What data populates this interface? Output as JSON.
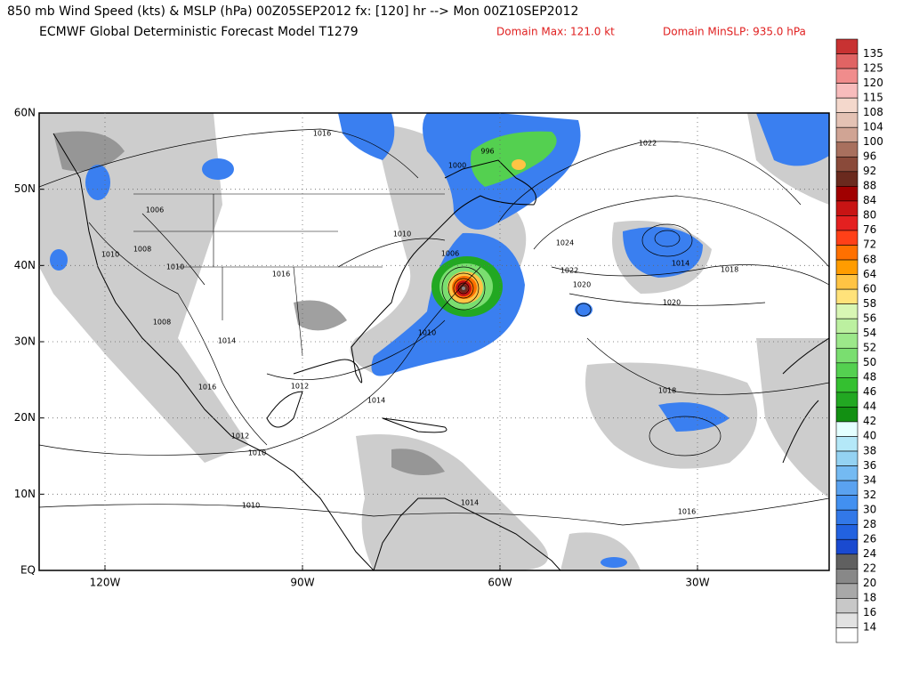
{
  "header": {
    "title": "850 mb Wind Speed (kts) & MSLP (hPa) 00Z05SEP2012 fx: [120] hr --> Mon 00Z10SEP2012",
    "subtitle": "ECMWF Global Deterministic Forecast Model T1279",
    "domain_max": "Domain Max: 121.0 kt",
    "domain_min": "Domain MinSLP: 935.0 hPa"
  },
  "map": {
    "lat_labels": [
      "60N",
      "50N",
      "40N",
      "30N",
      "20N",
      "10N",
      "EQ"
    ],
    "lon_labels": [
      "120W",
      "90W",
      "60W",
      "30W"
    ],
    "isobar_labels": [
      1016,
      996,
      1000,
      1022,
      1006,
      1008,
      1010,
      1010,
      1016,
      1010,
      1006,
      1024,
      1014,
      1018,
      1022,
      1020,
      1020,
      1008,
      1014,
      1010,
      1012,
      1016,
      1014,
      1018,
      1012,
      1010,
      1010,
      1014,
      1016
    ]
  },
  "colorbar": {
    "levels": [
      135,
      125,
      120,
      115,
      108,
      104,
      100,
      96,
      92,
      88,
      84,
      80,
      76,
      72,
      68,
      64,
      60,
      58,
      56,
      54,
      52,
      50,
      48,
      46,
      44,
      42,
      40,
      38,
      36,
      34,
      32,
      30,
      28,
      26,
      24,
      22,
      20,
      18,
      16,
      14
    ],
    "colors": [
      "#c83232",
      "#e06464",
      "#f08c8c",
      "#f8bcbc",
      "#f4d8cc",
      "#e4c2b4",
      "#d0a494",
      "#a8705e",
      "#8a4a3a",
      "#6a2a1e",
      "#a00000",
      "#c81414",
      "#e42020",
      "#ff4018",
      "#ff7000",
      "#ff9c00",
      "#ffc444",
      "#ffe27a",
      "#d8f6b4",
      "#bcf0a0",
      "#9ce88a",
      "#7ade70",
      "#54d050",
      "#34c030",
      "#22a822",
      "#129012",
      "#e4ffff",
      "#b4e8f8",
      "#94d2f2",
      "#74baf2",
      "#5aa2f0",
      "#4290f0",
      "#3278e8",
      "#2262e0",
      "#1a4ad0",
      "#606060",
      "#888888",
      "#a8a8a8",
      "#c8c8c8",
      "#e2e2e2",
      "#ffffff"
    ]
  }
}
